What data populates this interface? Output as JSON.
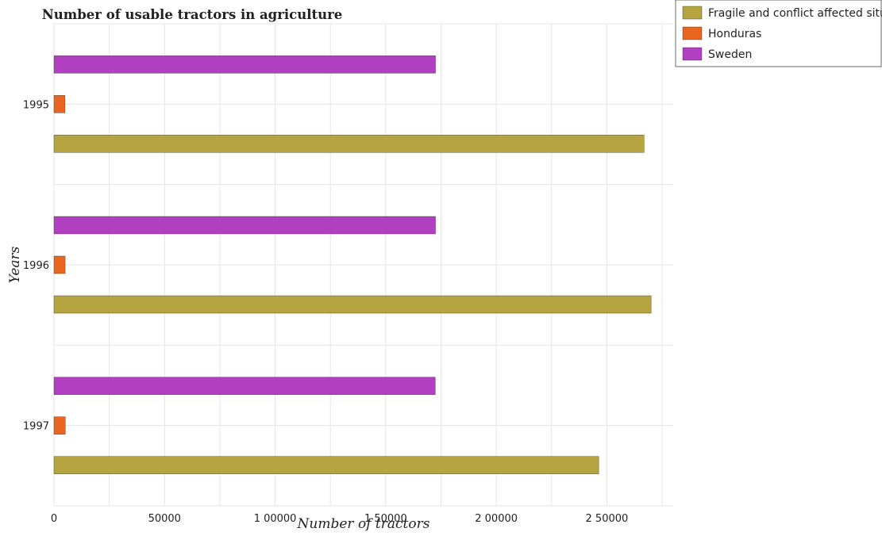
{
  "chart_data": {
    "type": "bar",
    "orientation": "horizontal",
    "title": "Number of usable tractors in agriculture",
    "xlabel": "Number of tractors",
    "ylabel": "Years",
    "categories": [
      "1995",
      "1996",
      "1997"
    ],
    "series": [
      {
        "name": "Fragile and conflict affected situations",
        "color": "#b5a43f",
        "values": [
          266800,
          270000,
          246300
        ]
      },
      {
        "name": "Honduras",
        "color": "#e8661f",
        "values": [
          5000,
          5050,
          5100
        ]
      },
      {
        "name": "Sweden",
        "color": "#b040c0",
        "values": [
          172500,
          172500,
          172400
        ]
      }
    ],
    "xlim": [
      0,
      280000
    ],
    "xticks": [
      0,
      50000,
      100000,
      150000,
      200000,
      250000
    ],
    "xtick_labels": [
      "0",
      "50000",
      "1 00000",
      "1 50000",
      "2 00000",
      "2 50000"
    ],
    "grid": true,
    "legend_position": "top-right"
  }
}
